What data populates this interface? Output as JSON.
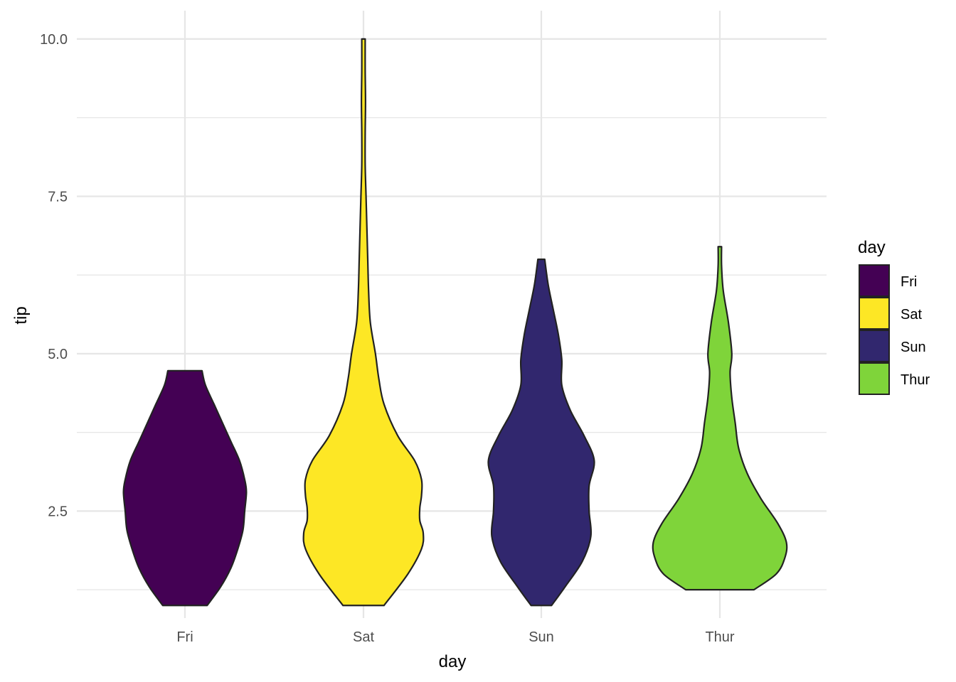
{
  "chart_data": {
    "type": "violin",
    "title": "",
    "xlabel": "day",
    "ylabel": "tip",
    "categories": [
      "Fri",
      "Sat",
      "Sun",
      "Thur"
    ],
    "ylim": [
      0.8,
      10.45
    ],
    "yticks": [
      2.5,
      5.0,
      7.5,
      10.0
    ],
    "ytick_labels": [
      "2.5",
      "5.0",
      "7.5",
      "10.0"
    ],
    "grid": true,
    "legend": {
      "title": "day",
      "position": "right",
      "entries": [
        "Fri",
        "Sat",
        "Sun",
        "Thur"
      ]
    },
    "colors": {
      "Fri": "#440154",
      "Sat": "#FDE725",
      "Sun": "#31276E",
      "Thur": "#7FD43A",
      "outline": "#222222",
      "grid": "#e6e6e6"
    },
    "series": [
      {
        "category": "Fri",
        "fill": "#440154",
        "density": [
          [
            1.0,
            0.13
          ],
          [
            1.3,
            0.21
          ],
          [
            1.6,
            0.27
          ],
          [
            1.9,
            0.31
          ],
          [
            2.2,
            0.34
          ],
          [
            2.5,
            0.35
          ],
          [
            2.8,
            0.36
          ],
          [
            3.0,
            0.35
          ],
          [
            3.3,
            0.32
          ],
          [
            3.6,
            0.27
          ],
          [
            3.9,
            0.22
          ],
          [
            4.2,
            0.17
          ],
          [
            4.5,
            0.12
          ],
          [
            4.73,
            0.1
          ]
        ]
      },
      {
        "category": "Sat",
        "fill": "#FDE725",
        "density": [
          [
            1.0,
            0.12
          ],
          [
            1.5,
            0.26
          ],
          [
            1.9,
            0.34
          ],
          [
            2.15,
            0.35
          ],
          [
            2.35,
            0.33
          ],
          [
            2.55,
            0.33
          ],
          [
            2.75,
            0.34
          ],
          [
            3.0,
            0.34
          ],
          [
            3.3,
            0.3
          ],
          [
            3.7,
            0.2
          ],
          [
            4.2,
            0.12
          ],
          [
            4.6,
            0.09
          ],
          [
            5.0,
            0.07
          ],
          [
            5.5,
            0.04
          ],
          [
            6.0,
            0.03
          ],
          [
            6.5,
            0.025
          ],
          [
            7.0,
            0.02
          ],
          [
            7.5,
            0.015
          ],
          [
            8.0,
            0.01
          ],
          [
            8.5,
            0.01
          ],
          [
            9.0,
            0.012
          ],
          [
            9.5,
            0.01
          ],
          [
            10.0,
            0.01
          ]
        ]
      },
      {
        "category": "Sun",
        "fill": "#31276E",
        "density": [
          [
            1.0,
            0.06
          ],
          [
            1.3,
            0.14
          ],
          [
            1.7,
            0.24
          ],
          [
            2.1,
            0.29
          ],
          [
            2.5,
            0.28
          ],
          [
            2.9,
            0.28
          ],
          [
            3.3,
            0.31
          ],
          [
            3.7,
            0.25
          ],
          [
            4.1,
            0.17
          ],
          [
            4.5,
            0.12
          ],
          [
            4.9,
            0.12
          ],
          [
            5.3,
            0.1
          ],
          [
            5.7,
            0.07
          ],
          [
            6.1,
            0.04
          ],
          [
            6.5,
            0.02
          ]
        ]
      },
      {
        "category": "Thur",
        "fill": "#7FD43A",
        "density": [
          [
            1.25,
            0.2
          ],
          [
            1.5,
            0.33
          ],
          [
            1.75,
            0.38
          ],
          [
            2.0,
            0.39
          ],
          [
            2.3,
            0.34
          ],
          [
            2.7,
            0.24
          ],
          [
            3.1,
            0.16
          ],
          [
            3.5,
            0.11
          ],
          [
            3.9,
            0.09
          ],
          [
            4.3,
            0.07
          ],
          [
            4.7,
            0.06
          ],
          [
            5.0,
            0.07
          ],
          [
            5.5,
            0.05
          ],
          [
            6.0,
            0.02
          ],
          [
            6.4,
            0.01
          ],
          [
            6.7,
            0.01
          ]
        ]
      }
    ]
  }
}
